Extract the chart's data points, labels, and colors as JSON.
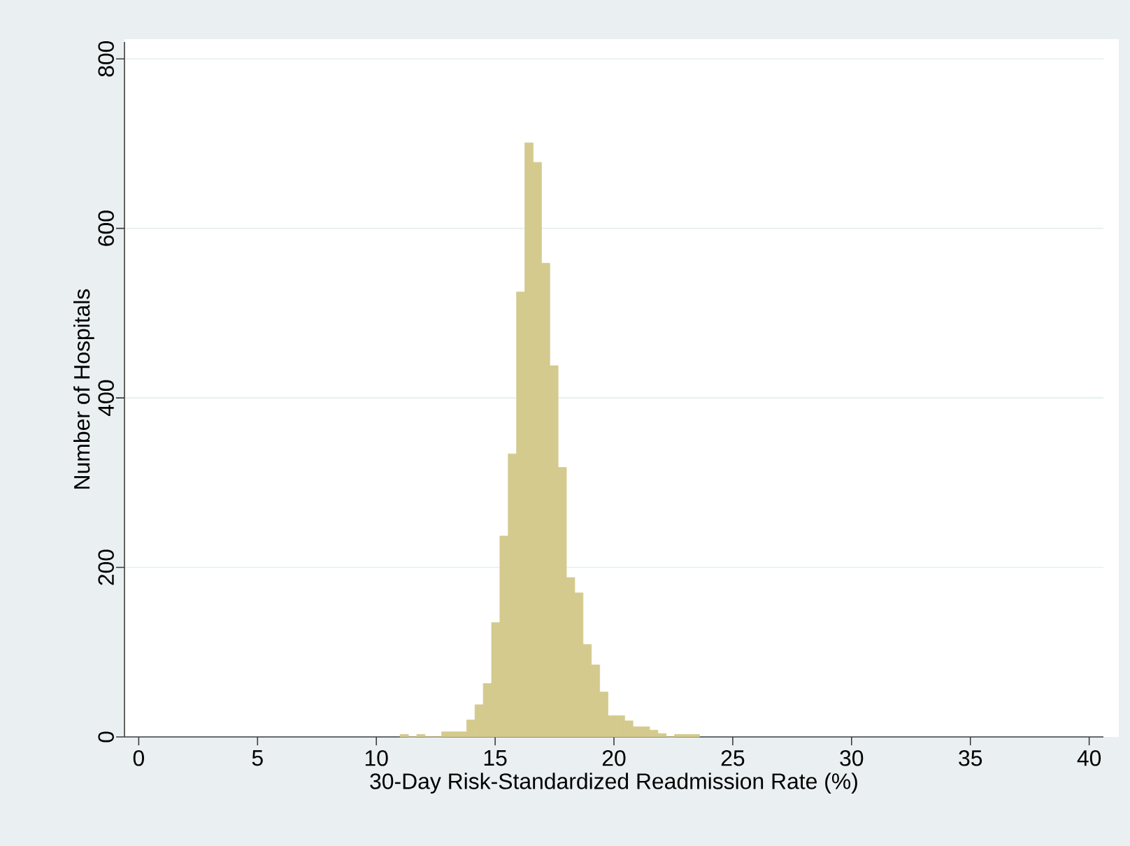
{
  "chart_data": {
    "type": "histogram",
    "xlabel": "30-Day Risk-Standardized Readmission Rate (%)",
    "ylabel": "Number of Hospitals",
    "bins": [
      11,
      11.35,
      11.7,
      12.05,
      12.4,
      12.75,
      13.1,
      13.45,
      13.8,
      14.15,
      14.5,
      14.85,
      15.2,
      15.55,
      15.9,
      16.25,
      16.6,
      16.95,
      17.3,
      17.65,
      18,
      18.35,
      18.7,
      19.05,
      19.4,
      19.75,
      20.1,
      20.45,
      20.8,
      21.15,
      21.5,
      21.85,
      22.2,
      22.55,
      22.9,
      23.25,
      23.6
    ],
    "values": [
      3,
      0,
      3,
      0,
      0,
      6,
      6,
      6,
      20,
      38,
      63,
      135,
      237,
      334,
      525,
      701,
      678,
      559,
      438,
      318,
      188,
      170,
      109,
      85,
      53,
      25,
      25,
      19,
      12,
      12,
      8,
      4,
      0,
      3,
      3,
      3
    ],
    "color": "#d4ca8e",
    "xlim": [
      -0.6,
      40.6
    ],
    "ylim": [
      0,
      820
    ],
    "xticks": [
      0,
      5,
      10,
      15,
      20,
      25,
      30,
      35,
      40
    ],
    "yticks": [
      0,
      200,
      400,
      600,
      800
    ],
    "grid": "y"
  }
}
